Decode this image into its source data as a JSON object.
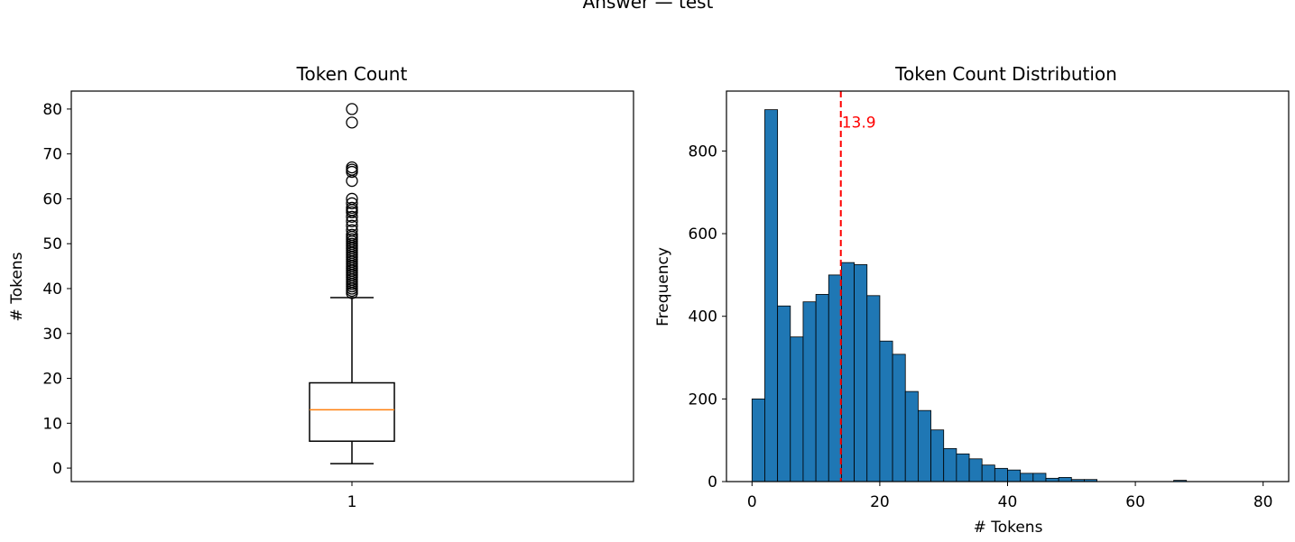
{
  "figure": {
    "suptitle": "Answer — test"
  },
  "chart_data": [
    {
      "type": "box",
      "title": "Token Count",
      "xlabel": "",
      "ylabel": "# Tokens",
      "ylim": [
        -3,
        84
      ],
      "yticks": [
        0,
        10,
        20,
        30,
        40,
        50,
        60,
        70,
        80
      ],
      "categories": [
        "1"
      ],
      "box": {
        "whisker_low": 1,
        "q1": 6,
        "median": 13,
        "q3": 19,
        "whisker_high": 38
      },
      "outliers": [
        39,
        39.5,
        40,
        40.5,
        41,
        41.5,
        42,
        42.5,
        43,
        43.5,
        44,
        44.5,
        45,
        45.5,
        46,
        46.5,
        47,
        47.5,
        48,
        48.5,
        49,
        49.5,
        50,
        50.5,
        51,
        51.5,
        52,
        53,
        54,
        55,
        56,
        57,
        57.5,
        58,
        59,
        60,
        64,
        66,
        66.5,
        67,
        77,
        80
      ],
      "colors": {
        "box": "#000000",
        "median": "#ff7f0e",
        "outlier": "#000000"
      },
      "grid": false
    },
    {
      "type": "bar",
      "subtype": "histogram",
      "title": "Token Count Distribution",
      "xlabel": "# Tokens",
      "ylabel": "Frequency",
      "xlim": [
        -4,
        84
      ],
      "ylim": [
        0,
        945
      ],
      "xticks": [
        0,
        20,
        40,
        60,
        80
      ],
      "yticks": [
        0,
        200,
        400,
        600,
        800
      ],
      "bin_width": 2,
      "bin_edges_start": 0,
      "values": [
        200,
        900,
        425,
        350,
        435,
        453,
        500,
        530,
        525,
        450,
        340,
        308,
        218,
        172,
        125,
        80,
        67,
        55,
        40,
        32,
        28,
        20,
        20,
        8,
        10,
        5,
        5,
        0,
        0,
        0,
        0,
        0,
        0,
        3,
        0,
        0,
        0,
        0,
        0,
        0
      ],
      "mean_line": {
        "value": 13.9,
        "label": "13.9",
        "color": "#ff0000"
      },
      "colors": {
        "bar": "#1f77b4",
        "edge": "#000000"
      },
      "grid": false
    }
  ]
}
